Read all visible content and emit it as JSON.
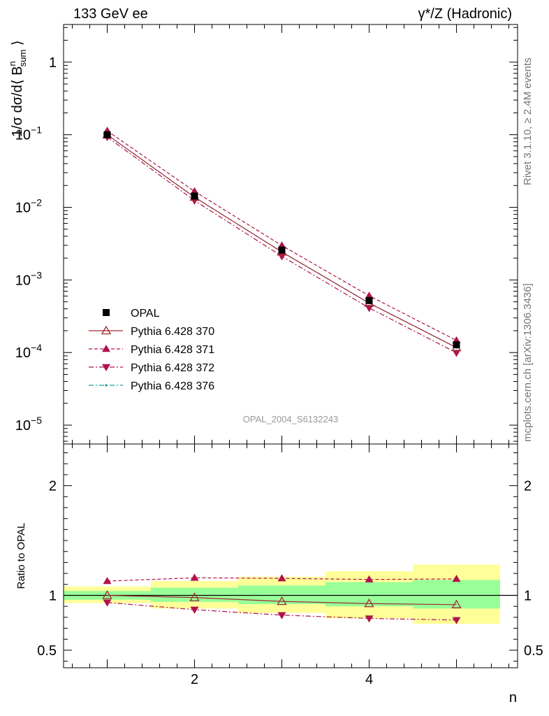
{
  "header": {
    "left": "133 GeV ee",
    "right": "γ*/Z (Hadronic)"
  },
  "side": {
    "rivet": "Rivet 3.1.10, ≥ 2.4M events",
    "mcplots": "mcplots.cern.ch [arXiv:1306.3436]"
  },
  "watermark": "OPAL_2004_S6132243",
  "chart_data": [
    {
      "type": "line",
      "panel": "main",
      "ylabel_parts": {
        "a": "1/σ dσ/d⟨ B",
        "sup": "n",
        "sub": "sum",
        "b": " ⟩"
      },
      "yscale": "log",
      "ylim": [
        5.5e-06,
        3.3
      ],
      "xlim": [
        0.5,
        5.7
      ],
      "yticks": [
        {
          "v": 1,
          "base": "1",
          "exp": ""
        },
        {
          "v": 0.1,
          "base": "10",
          "exp": "−1"
        },
        {
          "v": 0.01,
          "base": "10",
          "exp": "−2"
        },
        {
          "v": 0.001,
          "base": "10",
          "exp": "−3"
        },
        {
          "v": 0.0001,
          "base": "10",
          "exp": "−4"
        },
        {
          "v": 1e-05,
          "base": "10",
          "exp": "−5"
        }
      ],
      "x": [
        1,
        2,
        3,
        4,
        5
      ],
      "series": [
        {
          "name": "OPAL",
          "values": [
            0.1,
            0.0143,
            0.00258,
            0.00052,
            0.000128
          ],
          "color": "#000000",
          "marker": "square",
          "line": "none"
        },
        {
          "name": "Pythia 6.428 370",
          "values": [
            0.1,
            0.0138,
            0.00243,
            0.00048,
            0.000117
          ],
          "color": "#9e2a2f",
          "marker": "triangle-open",
          "line": "solid"
        },
        {
          "name": "Pythia 6.428 371",
          "values": [
            0.113,
            0.0166,
            0.00298,
            0.000605,
            0.000147
          ],
          "color": "#b0124e",
          "marker": "triangle-up",
          "line": "dashed"
        },
        {
          "name": "Pythia 6.428 372",
          "values": [
            0.093,
            0.0124,
            0.00212,
            0.000412,
            9.93e-05
          ],
          "color": "#b0124e",
          "marker": "triangle-down",
          "line": "dashdot"
        },
        {
          "name": "Pythia 6.428 376",
          "values": [
            0.1,
            0.0138,
            0.00243,
            0.00048,
            0.000117
          ],
          "color": "#1a9e9e",
          "marker": "dot",
          "line": "dashdot"
        }
      ]
    },
    {
      "type": "line",
      "panel": "ratio",
      "ylabel": "Ratio to OPAL",
      "ylim": [
        0.34,
        2.38
      ],
      "xlim": [
        0.5,
        5.7
      ],
      "yticks": [
        0.5,
        1,
        2
      ],
      "yticklabels": [
        "0.5",
        "1",
        "2"
      ],
      "xticks": [
        2,
        4
      ],
      "xticklabels": [
        "2",
        "4"
      ],
      "xlabel": "n",
      "bands": [
        {
          "x": [
            0.5,
            1.5
          ],
          "yellow": [
            0.93,
            1.08
          ],
          "green": [
            0.96,
            1.04
          ]
        },
        {
          "x": [
            1.5,
            2.5
          ],
          "yellow": [
            0.88,
            1.13
          ],
          "green": [
            0.94,
            1.07
          ]
        },
        {
          "x": [
            2.5,
            3.5
          ],
          "yellow": [
            0.84,
            1.17
          ],
          "green": [
            0.92,
            1.09
          ]
        },
        {
          "x": [
            3.5,
            4.5
          ],
          "yellow": [
            0.79,
            1.22
          ],
          "green": [
            0.9,
            1.12
          ]
        },
        {
          "x": [
            4.5,
            5.5
          ],
          "yellow": [
            0.74,
            1.28
          ],
          "green": [
            0.88,
            1.14
          ]
        }
      ],
      "x": [
        1,
        2,
        3,
        4,
        5
      ],
      "series": [
        {
          "name": "Pythia 6.428 370",
          "values": [
            1.0,
            0.98,
            0.945,
            0.925,
            0.915
          ],
          "color": "#9e2a2f",
          "marker": "triangle-open",
          "line": "solid"
        },
        {
          "name": "Pythia 6.428 371",
          "values": [
            1.13,
            1.16,
            1.155,
            1.145,
            1.15
          ],
          "color": "#b0124e",
          "marker": "triangle-up",
          "line": "dashed"
        },
        {
          "name": "Pythia 6.428 372",
          "values": [
            0.935,
            0.87,
            0.82,
            0.79,
            0.775
          ],
          "color": "#b0124e",
          "marker": "triangle-down",
          "line": "dashdot"
        }
      ]
    }
  ]
}
